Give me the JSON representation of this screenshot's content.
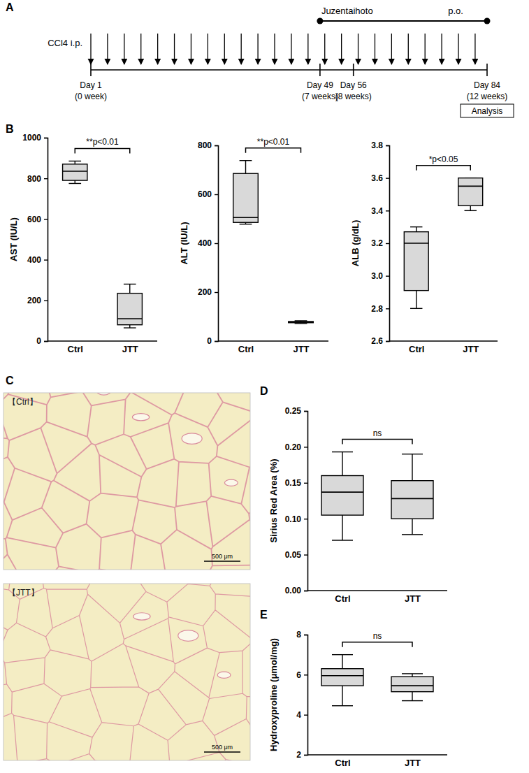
{
  "panels": [
    "A",
    "B",
    "C",
    "D",
    "E"
  ],
  "timeline": {
    "marker_label": "CCl4 i.p.",
    "treatment": {
      "label": "Juzentaihoto",
      "route": "p.o.",
      "start": 49,
      "end": 84
    },
    "ticks": [
      {
        "day": 1,
        "label": "Day 1",
        "sub": "(0 week)"
      },
      {
        "day": 49,
        "label": "Day 49",
        "sub": "(7 weeks)"
      },
      {
        "day": 56,
        "label": "Day 56",
        "sub": "(8 weeks)"
      },
      {
        "day": 84,
        "label": "Day 84",
        "sub": "(12 weeks)"
      }
    ],
    "box_label": "Analysis"
  },
  "images": [
    {
      "label": "【Ctrl】",
      "scale_bar": "500 μm"
    },
    {
      "label": "【JTT】",
      "scale_bar": "500 μm"
    }
  ],
  "chart_data": [
    {
      "type": "box",
      "y_label": "AST (IU/L)",
      "annotation": "**p<0.01",
      "categories": [
        "Ctrl",
        "JTT"
      ],
      "boxes": [
        {
          "min": 775,
          "q1": 790,
          "median": 835,
          "q3": 870,
          "max": 885
        },
        {
          "min": 65,
          "q1": 80,
          "median": 110,
          "q3": 235,
          "max": 280
        }
      ],
      "color": "#d9d9d9",
      "ylim": [
        0,
        1000
      ],
      "yticks": [
        0,
        200,
        400,
        600,
        800,
        1000
      ]
    },
    {
      "type": "box",
      "y_label": "ALT (IU/L)",
      "annotation": "**p<0.01",
      "categories": [
        "Ctrl",
        "JTT"
      ],
      "boxes": [
        {
          "min": 478,
          "q1": 485,
          "median": 505,
          "q3": 685,
          "max": 738
        },
        {
          "min": 72,
          "q1": 75,
          "median": 78,
          "q3": 80,
          "max": 83
        }
      ],
      "color": "#d9d9d9",
      "ylim": [
        0,
        800
      ],
      "yticks": [
        0,
        200,
        400,
        600,
        800
      ]
    },
    {
      "type": "box",
      "y_label": "ALB (g/dL)",
      "annotation": "*p<0.05",
      "categories": [
        "Ctrl",
        "JTT"
      ],
      "boxes": [
        {
          "min": 2.8,
          "q1": 2.91,
          "median": 3.2,
          "q3": 3.27,
          "max": 3.3
        },
        {
          "min": 3.4,
          "q1": 3.43,
          "median": 3.55,
          "q3": 3.6,
          "max": 3.6
        }
      ],
      "color": "#d9d9d9",
      "ylim": [
        2.6,
        3.8
      ],
      "yticks": [
        2.6,
        2.8,
        {
          "value": 3,
          "label": "3.0"
        },
        3.2,
        3.4,
        3.6,
        3.8
      ]
    },
    {
      "type": "box",
      "y_label": "Sirius Red Area (%)",
      "annotation": "ns",
      "categories": [
        "Ctrl",
        "JTT"
      ],
      "boxes": [
        {
          "min": 0.07,
          "q1": 0.105,
          "median": 0.137,
          "q3": 0.16,
          "max": 0.193
        },
        {
          "min": 0.078,
          "q1": 0.1,
          "median": 0.128,
          "q3": 0.153,
          "max": 0.19
        }
      ],
      "color": "#d9d9d9",
      "ylim": [
        0,
        0.25
      ],
      "yticks": [
        {
          "value": 0,
          "label": "0.00"
        },
        0.05,
        {
          "value": 0.1,
          "label": "0.10"
        },
        0.15,
        {
          "value": 0.2,
          "label": "0.20"
        },
        0.25
      ]
    },
    {
      "type": "box",
      "y_label": "Hydroxyproline (μmol/mg)",
      "annotation": "ns",
      "categories": [
        "Ctrl",
        "JTT"
      ],
      "boxes": [
        {
          "min": 4.45,
          "q1": 5.45,
          "median": 5.95,
          "q3": 6.3,
          "max": 7.0
        },
        {
          "min": 4.7,
          "q1": 5.15,
          "median": 5.45,
          "q3": 5.9,
          "max": 6.05
        }
      ],
      "color": "#d9d9d9",
      "ylim": [
        2,
        8
      ],
      "yticks": [
        2,
        4,
        6,
        8
      ]
    }
  ]
}
